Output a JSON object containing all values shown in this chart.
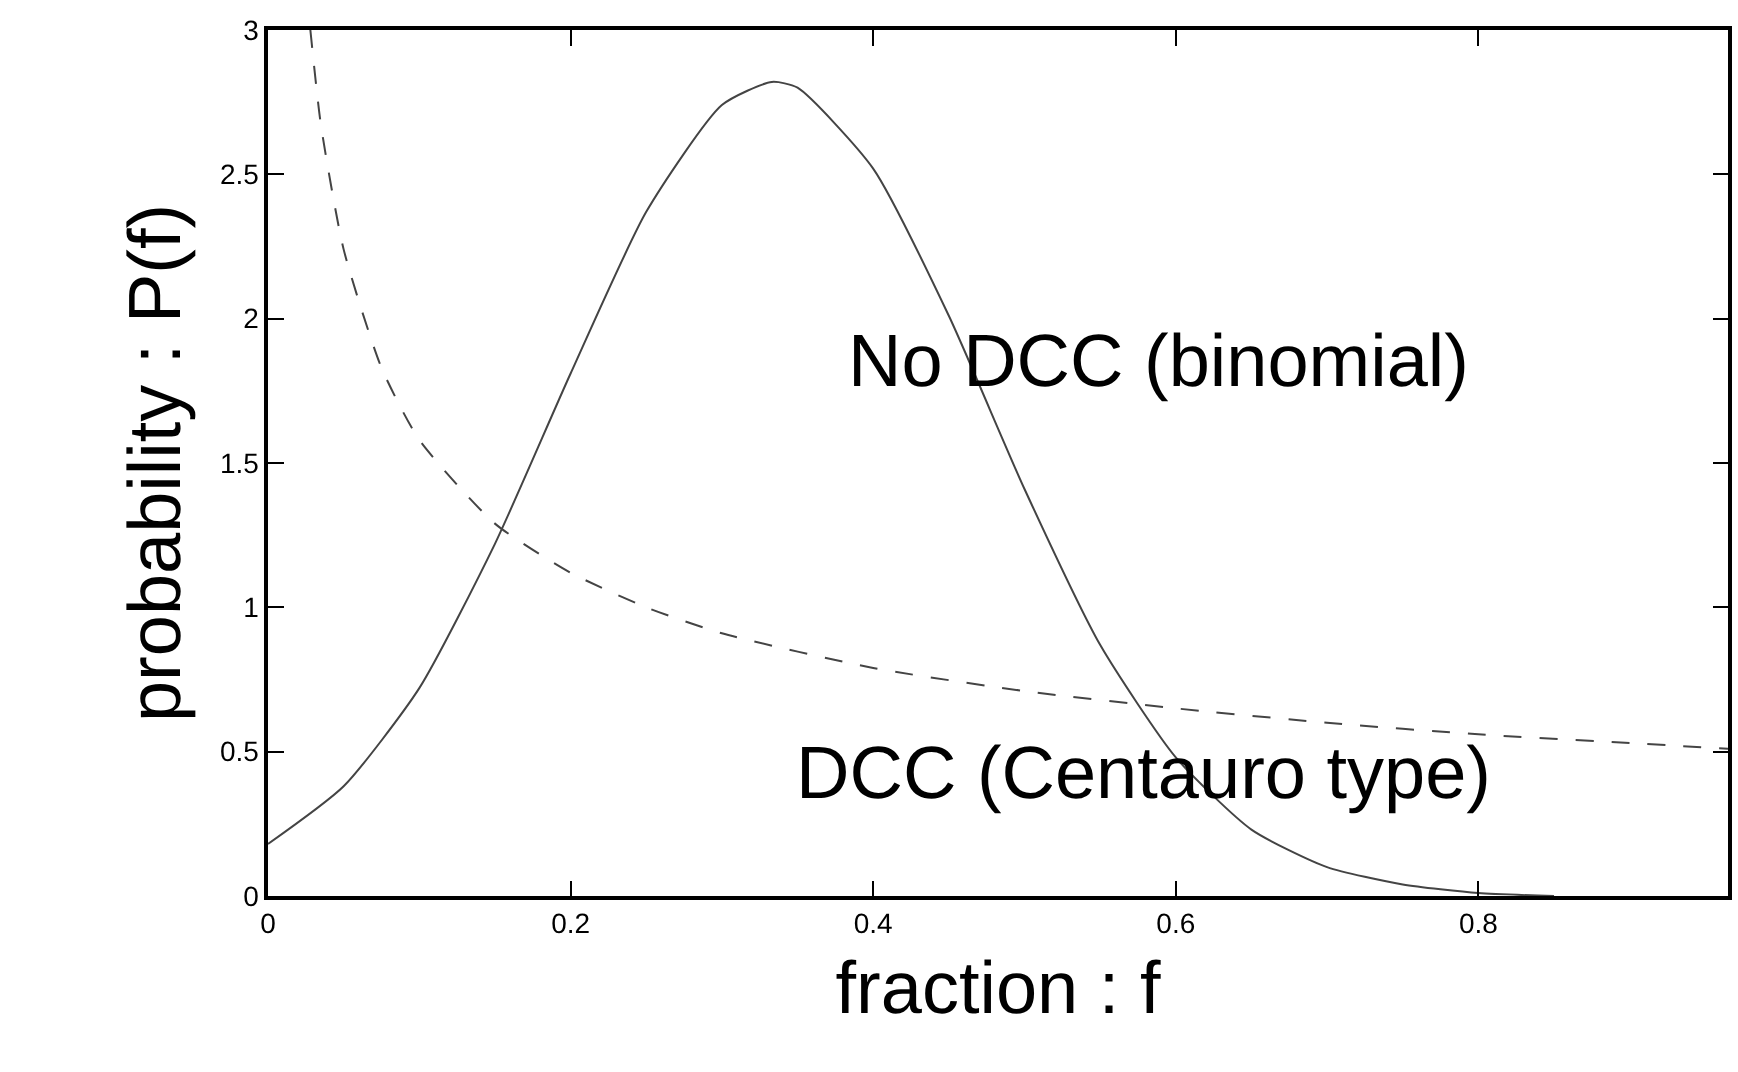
{
  "chart_data": {
    "type": "line",
    "xlabel": "fraction : f",
    "ylabel": "probability : P(f)",
    "xlim": [
      0,
      0.965
    ],
    "ylim": [
      0,
      3
    ],
    "xticks": [
      0,
      0.2,
      0.4,
      0.6,
      0.8
    ],
    "yticks": [
      0,
      0.5,
      1,
      1.5,
      2,
      2.5,
      3
    ],
    "legend": false,
    "marker": "none",
    "series": [
      {
        "name": "No DCC (binomial)",
        "color": "#444444",
        "line_style": "solid",
        "x": [
          0,
          0.05,
          0.1,
          0.15,
          0.2,
          0.25,
          0.3,
          0.333,
          0.35,
          0.4,
          0.45,
          0.5,
          0.55,
          0.6,
          0.65,
          0.7,
          0.75,
          0.8,
          0.85
        ],
        "values": [
          0.18,
          0.38,
          0.72,
          1.22,
          1.81,
          2.37,
          2.74,
          2.82,
          2.8,
          2.52,
          2.01,
          1.41,
          0.87,
          0.48,
          0.23,
          0.1,
          0.04,
          0.01,
          0.0
        ]
      },
      {
        "name": "DCC (Centauro type)",
        "color": "#444444",
        "line_style": "dashed",
        "x": [
          0.028,
          0.035,
          0.05,
          0.075,
          0.1,
          0.15,
          0.2,
          0.25,
          0.3,
          0.4,
          0.5,
          0.6,
          0.7,
          0.8,
          0.9,
          0.965
        ],
        "values": [
          3.0,
          2.67,
          2.24,
          1.83,
          1.58,
          1.29,
          1.12,
          1.0,
          0.91,
          0.79,
          0.71,
          0.65,
          0.6,
          0.56,
          0.53,
          0.51
        ]
      }
    ]
  }
}
